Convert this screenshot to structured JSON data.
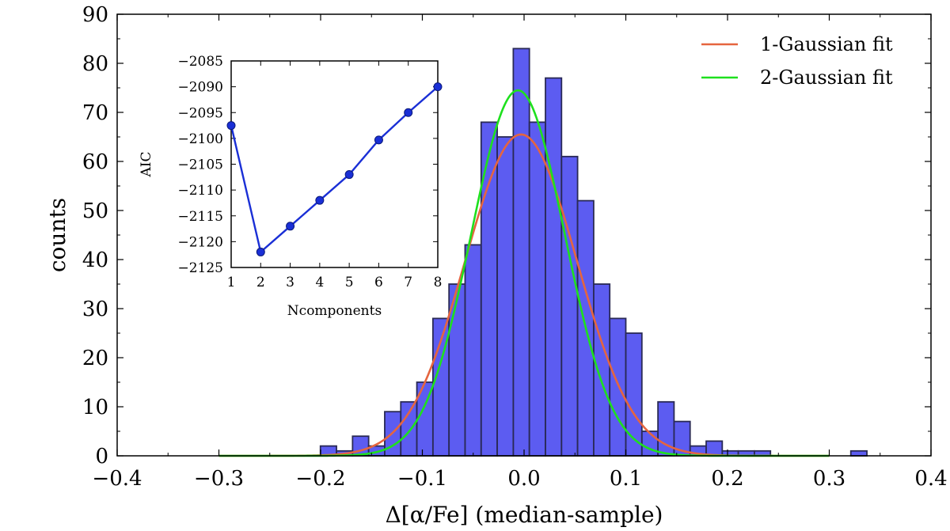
{
  "chart_data": [
    {
      "type": "bar",
      "xlabel": "Δ[α/Fe] (median-sample)",
      "ylabel": "counts",
      "xlim": [
        -0.4,
        0.4
      ],
      "ylim": [
        0,
        90
      ],
      "xticks": [
        "−0.4",
        "−0.3",
        "−0.2",
        "−0.1",
        "0.0",
        "0.1",
        "0.2",
        "0.3",
        "0.4"
      ],
      "yticks": [
        "0",
        "10",
        "20",
        "30",
        "40",
        "50",
        "60",
        "70",
        "80",
        "90"
      ],
      "bin_width": 0.0158,
      "bins": [
        {
          "left": -0.2002,
          "count": 2
        },
        {
          "left": -0.1844,
          "count": 1
        },
        {
          "left": -0.1686,
          "count": 4
        },
        {
          "left": -0.1528,
          "count": 2
        },
        {
          "left": -0.137,
          "count": 9
        },
        {
          "left": -0.1212,
          "count": 11
        },
        {
          "left": -0.1054,
          "count": 15
        },
        {
          "left": -0.0896,
          "count": 28
        },
        {
          "left": -0.0738,
          "count": 35
        },
        {
          "left": -0.058,
          "count": 43
        },
        {
          "left": -0.0422,
          "count": 68
        },
        {
          "left": -0.0264,
          "count": 65
        },
        {
          "left": -0.0106,
          "count": 83
        },
        {
          "left": 0.0052,
          "count": 68
        },
        {
          "left": 0.021,
          "count": 77
        },
        {
          "left": 0.0368,
          "count": 61
        },
        {
          "left": 0.0526,
          "count": 52
        },
        {
          "left": 0.0684,
          "count": 35
        },
        {
          "left": 0.0842,
          "count": 28
        },
        {
          "left": 0.1,
          "count": 25
        },
        {
          "left": 0.1158,
          "count": 5
        },
        {
          "left": 0.1316,
          "count": 11
        },
        {
          "left": 0.1474,
          "count": 7
        },
        {
          "left": 0.1632,
          "count": 2
        },
        {
          "left": 0.179,
          "count": 3
        },
        {
          "left": 0.1948,
          "count": 1
        },
        {
          "left": 0.2106,
          "count": 1
        },
        {
          "left": 0.2264,
          "count": 1
        },
        {
          "left": 0.3212,
          "count": 1
        }
      ],
      "series": [
        {
          "name": "1-Gaussian fit",
          "color": "#e5653f",
          "model": "gaussian",
          "amplitude": 65.5,
          "mean": -0.003,
          "sigma": 0.055,
          "x_range": [
            -0.3,
            0.3
          ]
        },
        {
          "name": "2-Gaussian fit",
          "color": "#1ee01e",
          "model": "gaussian",
          "amplitude": 74.5,
          "mean": -0.006,
          "sigma": 0.046,
          "x_range": [
            -0.3,
            0.3
          ]
        }
      ],
      "bar_color": "#4040ee",
      "bar_edge_color": "#2a2a55",
      "legend_position": "top-right",
      "grid": false
    },
    {
      "type": "line",
      "xlabel": "Ncomponents",
      "ylabel": "AIC",
      "xlim": [
        1,
        8
      ],
      "ylim": [
        -2125,
        -2085
      ],
      "xticks": [
        "1",
        "2",
        "3",
        "4",
        "5",
        "6",
        "7",
        "8"
      ],
      "yticks": [
        "−2085",
        "−2090",
        "−2095",
        "−2100",
        "−2105",
        "−2110",
        "−2115",
        "−2120",
        "−2125"
      ],
      "x": [
        1,
        2,
        3,
        4,
        5,
        6,
        7,
        8
      ],
      "y": [
        -2097.5,
        -2122,
        -2117,
        -2112,
        -2107,
        -2100.3,
        -2095,
        -2090
      ],
      "color": "#1a2fd6",
      "grid": false
    }
  ]
}
